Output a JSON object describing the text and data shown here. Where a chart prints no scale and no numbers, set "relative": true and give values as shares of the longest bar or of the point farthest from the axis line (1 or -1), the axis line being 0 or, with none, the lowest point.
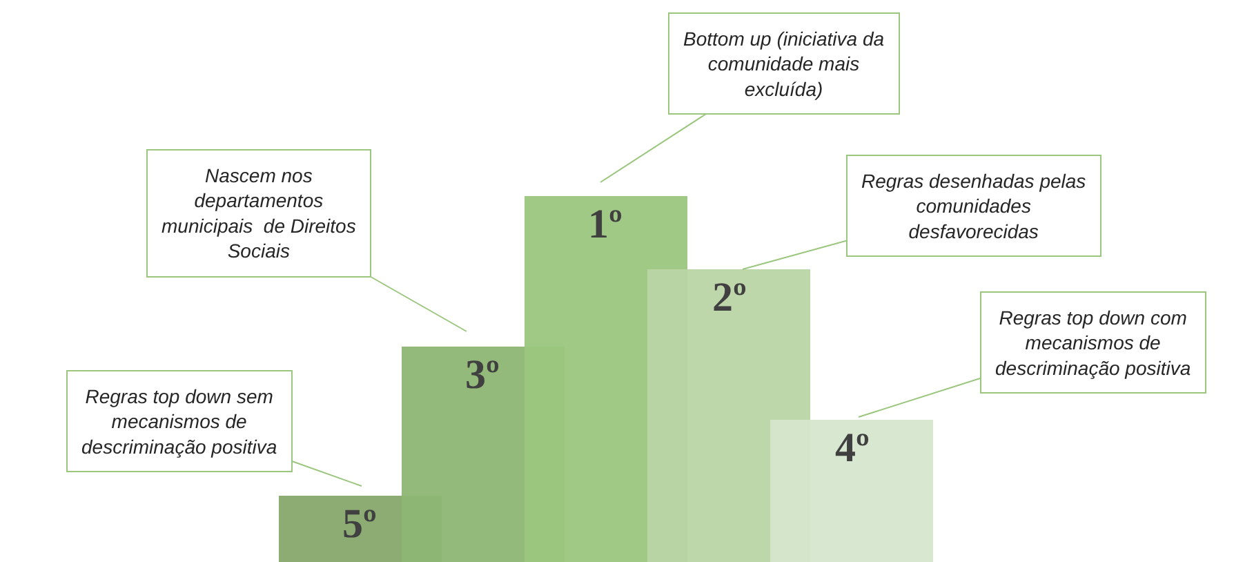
{
  "chart_data": {
    "type": "bar",
    "relative": true,
    "categories": [
      null,
      null,
      null,
      null,
      null
    ],
    "values": [
      0.18,
      0.59,
      1,
      0.8,
      0.39
    ],
    "colors": [
      "#86a86c",
      "#8db574",
      "#9ac67e",
      "#b9d5a6",
      "#d6e6cc"
    ],
    "annotations": [
      "5º",
      "3º",
      "1º",
      "2º",
      "4º",
      "Regras top down sem\nmecanismos de\ndescriminação positiva",
      "Nascem nos\ndepartamentos\nmunicipais  de Direitos\nSociais",
      "Bottom up (iniciativa da\ncomunidade mais\nexcluída)",
      "Regras desenhadas pelas\ncomunidades\ndesfavorecidas",
      "Regras top down com\nmecanismos de\ndescriminação positiva"
    ],
    "legend": false
  }
}
